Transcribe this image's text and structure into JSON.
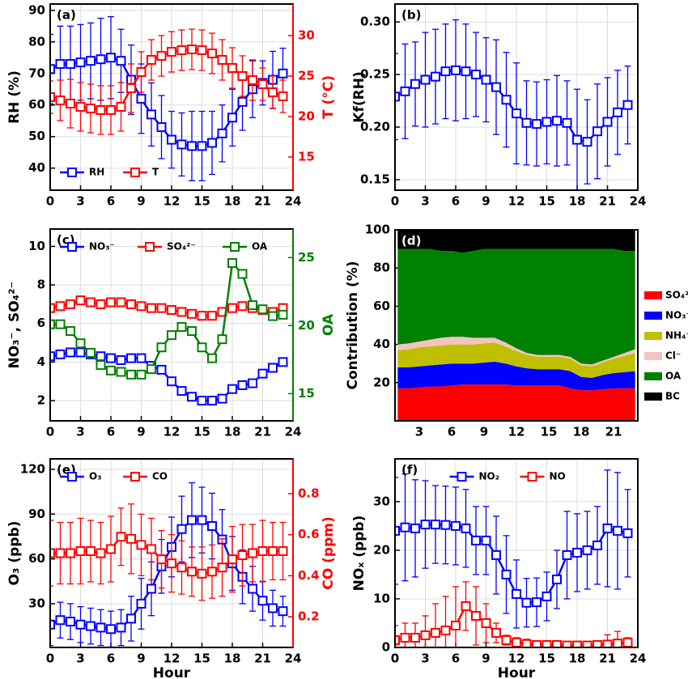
{
  "chart_data": [
    {
      "type": "line",
      "label": "(a)",
      "ylabel": "RH (%)",
      "y2label": "T (°C)",
      "grid": true,
      "legend": "lower left",
      "x": [
        0,
        1,
        2,
        3,
        4,
        5,
        6,
        7,
        8,
        9,
        10,
        11,
        12,
        13,
        14,
        15,
        16,
        17,
        18,
        19,
        20,
        21,
        22,
        23
      ],
      "xlim": [
        0,
        24
      ],
      "xticks": [
        0,
        3,
        6,
        9,
        12,
        15,
        18,
        21,
        24
      ],
      "ylim": [
        33,
        92
      ],
      "yticks": [
        40,
        50,
        60,
        70,
        80,
        90
      ],
      "y2lim": [
        10.9,
        33.9
      ],
      "y2ticks": [
        15,
        20,
        25,
        30
      ],
      "series": [
        {
          "name": "RH",
          "color": "#0000ff",
          "values": [
            71.4,
            73,
            73,
            73.5,
            74,
            74.5,
            75,
            74,
            68,
            62,
            57,
            53,
            49,
            47.5,
            47,
            47,
            48,
            51,
            56,
            61,
            65,
            67,
            68,
            70
          ],
          "errors": [
            11,
            12,
            12,
            12,
            12,
            13,
            13,
            10,
            11,
            11,
            10,
            10,
            9,
            10,
            11,
            11,
            10,
            9,
            9,
            9,
            9,
            7,
            9,
            8
          ]
        },
        {
          "name": "T",
          "color": "#ff0000",
          "axis": "y2",
          "values": [
            22.4,
            22,
            21.6,
            21.2,
            21,
            20.8,
            20.8,
            21.2,
            23.5,
            25.5,
            27,
            27.5,
            28,
            28.2,
            28.3,
            28.2,
            27.8,
            27,
            26,
            25,
            24.5,
            24,
            23,
            22.5
          ],
          "errors": [
            2,
            2.5,
            3,
            3,
            3,
            3,
            3,
            3,
            3,
            2.5,
            2.5,
            2.5,
            2.5,
            2.5,
            2.5,
            2.5,
            2.5,
            2.5,
            2.5,
            2.5,
            2.5,
            2,
            2,
            2
          ]
        }
      ]
    },
    {
      "type": "line",
      "label": "(b)",
      "ylabel": "Kf(RH)",
      "grid": true,
      "x": [
        0,
        1,
        2,
        3,
        4,
        5,
        6,
        7,
        8,
        9,
        10,
        11,
        12,
        13,
        14,
        15,
        16,
        17,
        18,
        19,
        20,
        21,
        22,
        23
      ],
      "xlim": [
        0,
        24
      ],
      "xticks": [
        0,
        3,
        6,
        9,
        12,
        15,
        18,
        21,
        24
      ],
      "ylim": [
        0.14,
        0.317
      ],
      "yticks": [
        {
          "value": 0.15,
          "label": "0.15"
        },
        {
          "value": 0.2,
          "label": "0.20"
        },
        {
          "value": 0.25,
          "label": "0.25"
        },
        {
          "value": 0.3,
          "label": "0.30"
        }
      ],
      "series": [
        {
          "color": "#0000ff",
          "values": [
            0.229,
            0.234,
            0.241,
            0.245,
            0.248,
            0.253,
            0.254,
            0.253,
            0.25,
            0.245,
            0.238,
            0.226,
            0.213,
            0.204,
            0.203,
            0.205,
            0.206,
            0.204,
            0.188,
            0.186,
            0.196,
            0.205,
            0.214,
            0.221
          ],
          "errors": [
            0.041,
            0.045,
            0.04,
            0.045,
            0.045,
            0.045,
            0.048,
            0.045,
            0.04,
            0.04,
            0.045,
            0.045,
            0.048,
            0.04,
            0.04,
            0.04,
            0.043,
            0.04,
            0.048,
            0.04,
            0.045,
            0.042,
            0.04,
            0.037
          ]
        }
      ]
    },
    {
      "type": "line",
      "label": "(c)",
      "ylabel": "NO₃⁻, SO₄²⁻",
      "y2label": "OA",
      "grid": true,
      "legend": "upper left",
      "x": [
        0,
        1,
        2,
        3,
        4,
        5,
        6,
        7,
        8,
        9,
        10,
        11,
        12,
        13,
        14,
        15,
        16,
        17,
        18,
        19,
        20,
        21,
        22,
        23
      ],
      "xlim": [
        0,
        24
      ],
      "xticks": [
        0,
        3,
        6,
        9,
        12,
        15,
        18,
        21,
        24
      ],
      "ylim": [
        0.95,
        10.9
      ],
      "yticks": [
        2,
        4,
        6,
        8,
        10
      ],
      "y2lim": [
        13,
        27.1
      ],
      "y2ticks": [
        15,
        20,
        25
      ],
      "series": [
        {
          "name": "NO₃⁻",
          "color": "#0000ff",
          "values": [
            4.3,
            4.4,
            4.5,
            4.5,
            4.4,
            4.3,
            4.2,
            4.1,
            4.2,
            4.2,
            3.8,
            3.6,
            3.0,
            2.5,
            2.2,
            2.0,
            2.0,
            2.1,
            2.6,
            2.8,
            2.9,
            3.4,
            3.7,
            4.0
          ]
        },
        {
          "name": "SO₄²⁻",
          "color": "#ff0000",
          "values": [
            6.8,
            6.9,
            7.0,
            7.2,
            7.1,
            7.0,
            7.1,
            7.1,
            7.0,
            6.9,
            6.8,
            6.8,
            6.7,
            6.6,
            6.5,
            6.4,
            6.4,
            6.6,
            6.8,
            6.9,
            6.8,
            6.7,
            6.6,
            6.8
          ]
        },
        {
          "name": "OA",
          "color": "#008000",
          "axis": "y2",
          "values": [
            20.1,
            20.1,
            19.6,
            18.7,
            18.0,
            17.1,
            16.7,
            16.6,
            16.4,
            16.4,
            16.8,
            18.4,
            19.3,
            19.9,
            19.6,
            18.4,
            17.6,
            19.0,
            24.6,
            23.8,
            21.5,
            21.2,
            20.7,
            20.8
          ]
        }
      ]
    },
    {
      "type": "area",
      "label": "(d)",
      "ylabel": "Contribution (%)",
      "legend": "outside right",
      "x": [
        1,
        2,
        3,
        4,
        5,
        6,
        7,
        8,
        9,
        10,
        11,
        12,
        13,
        14,
        15,
        16,
        17,
        18,
        19,
        20,
        21,
        22,
        23
      ],
      "xlim": [
        0.75,
        23.25
      ],
      "xticks": [
        3,
        6,
        9,
        12,
        15,
        18,
        21
      ],
      "ylim": [
        0,
        100
      ],
      "yticks": [
        20,
        40,
        60,
        80,
        100
      ],
      "series": [
        {
          "name": "SO₄²⁻",
          "color": "#ff0000",
          "values": [
            17,
            17,
            17.5,
            18,
            18,
            18.5,
            19,
            19,
            19,
            19,
            19,
            18.5,
            18.5,
            18.5,
            18.5,
            18.5,
            17,
            16,
            16,
            16.5,
            17,
            17,
            17
          ]
        },
        {
          "name": "NO₃⁻",
          "color": "#0000ff",
          "values": [
            11,
            11,
            11,
            11,
            11.5,
            11.5,
            11,
            11,
            11.5,
            12,
            11,
            10,
            9,
            8.5,
            8.5,
            8.5,
            9,
            7,
            6.5,
            7.5,
            8,
            8.5,
            9
          ]
        },
        {
          "name": "NH₄⁺",
          "color": "#bfbf00",
          "values": [
            9,
            9.5,
            10,
            10,
            10,
            10,
            10,
            10,
            10,
            10,
            9,
            8,
            7,
            6.5,
            6.5,
            6.5,
            6.5,
            6,
            6,
            6.5,
            7.5,
            8.5,
            9.5
          ]
        },
        {
          "name": "Cl⁻",
          "color": "#f4c2c2",
          "values": [
            3,
            3,
            3,
            3.5,
            4,
            4,
            4,
            3.5,
            3,
            2.5,
            2,
            1.5,
            1,
            1,
            1,
            1,
            1,
            1,
            1,
            1,
            1,
            1.5,
            2
          ]
        },
        {
          "name": "OA",
          "color": "#008000",
          "values": [
            50,
            49.5,
            48.5,
            47.5,
            45.5,
            45,
            44,
            45.5,
            46.5,
            46.5,
            49,
            52,
            54.5,
            55.5,
            55.5,
            55.5,
            56.5,
            60,
            60.5,
            58.5,
            56.5,
            53.5,
            51.5
          ]
        },
        {
          "name": "BC",
          "color": "#000000",
          "values": [
            10,
            10,
            10,
            10,
            11,
            11,
            12,
            11,
            10,
            10,
            10,
            10,
            10,
            10,
            10,
            10,
            10,
            10,
            10,
            10,
            10,
            11,
            11
          ]
        }
      ]
    },
    {
      "type": "line",
      "label": "(e)",
      "ylabel": "O₃ (ppb)",
      "y2label": "CO (ppm)",
      "xlabel": "Hour",
      "grid": true,
      "legend": "upper left",
      "x": [
        0,
        1,
        2,
        3,
        4,
        5,
        6,
        7,
        8,
        9,
        10,
        11,
        12,
        13,
        14,
        15,
        16,
        17,
        18,
        19,
        20,
        21,
        22,
        23
      ],
      "xlim": [
        0,
        24
      ],
      "xticks": [
        0,
        3,
        6,
        9,
        12,
        15,
        18,
        21,
        24
      ],
      "ylim": [
        0.7,
        127
      ],
      "yticks": [
        30,
        60,
        90,
        120
      ],
      "y2lim": [
        0.05,
        0.97
      ],
      "y2ticks": [
        0.2,
        0.4,
        0.6,
        0.8
      ],
      "series": [
        {
          "name": "O₃",
          "color": "#0000ff",
          "values": [
            16,
            19,
            18,
            16,
            15,
            14,
            13,
            14,
            20,
            30,
            40,
            55,
            68,
            80,
            86,
            86,
            82,
            73,
            57,
            48,
            40,
            32,
            27,
            25
          ],
          "errors": [
            14,
            12,
            12,
            12,
            12,
            12,
            12,
            12,
            15,
            17,
            18,
            18,
            20,
            22,
            25,
            22,
            22,
            20,
            18,
            18,
            15,
            13,
            12,
            10
          ]
        },
        {
          "name": "CO",
          "color": "#ff0000",
          "axis": "y2",
          "values": [
            0.51,
            0.51,
            0.51,
            0.52,
            0.52,
            0.51,
            0.53,
            0.59,
            0.58,
            0.55,
            0.53,
            0.48,
            0.46,
            0.44,
            0.42,
            0.41,
            0.42,
            0.44,
            0.48,
            0.5,
            0.51,
            0.52,
            0.52,
            0.52
          ],
          "errors": [
            0.16,
            0.15,
            0.15,
            0.16,
            0.15,
            0.15,
            0.16,
            0.14,
            0.17,
            0.15,
            0.15,
            0.14,
            0.14,
            0.13,
            0.12,
            0.13,
            0.13,
            0.14,
            0.16,
            0.15,
            0.14,
            0.15,
            0.14,
            0.14
          ]
        }
      ]
    },
    {
      "type": "line",
      "label": "(f)",
      "ylabel": "NOₓ (ppb)",
      "xlabel": "Hour",
      "grid": true,
      "legend": "upper center",
      "x": [
        0,
        1,
        2,
        3,
        4,
        5,
        6,
        7,
        8,
        9,
        10,
        11,
        12,
        13,
        14,
        15,
        16,
        17,
        18,
        19,
        20,
        21,
        22,
        23
      ],
      "xlim": [
        0,
        24
      ],
      "xticks": [
        0,
        3,
        6,
        9,
        12,
        15,
        18,
        21,
        24
      ],
      "ylim": [
        0,
        38.8
      ],
      "yticks": [
        0,
        10,
        20,
        30
      ],
      "series": [
        {
          "name": "NO₂",
          "color": "#0000ff",
          "values": [
            24,
            24.7,
            24.5,
            25.3,
            25.3,
            25.2,
            25,
            24.5,
            22,
            22,
            19,
            15,
            11,
            9.2,
            9.3,
            10.5,
            14,
            19,
            19.5,
            20,
            21,
            24.5,
            24,
            23.5
          ],
          "errors": [
            11,
            11,
            10,
            9,
            8,
            8,
            8,
            8,
            7,
            7,
            8,
            8,
            7,
            5,
            5,
            5,
            6,
            9,
            8,
            8,
            8,
            12,
            12,
            9
          ]
        },
        {
          "name": "NO",
          "color": "#ff0000",
          "values": [
            1.5,
            2,
            2,
            2.5,
            3,
            3.5,
            4.5,
            8.5,
            6.5,
            5,
            3,
            1.5,
            1,
            0.7,
            0.5,
            0.5,
            0.5,
            0.4,
            0.4,
            0.4,
            0.5,
            0.6,
            0.8,
            1
          ],
          "errors": [
            3,
            3,
            3,
            4,
            6,
            7,
            8,
            5,
            6,
            4,
            2,
            1,
            1,
            1,
            0.5,
            0.5,
            0.5,
            0.4,
            0.4,
            0.4,
            0.5,
            2,
            2.5,
            1
          ]
        }
      ]
    }
  ]
}
